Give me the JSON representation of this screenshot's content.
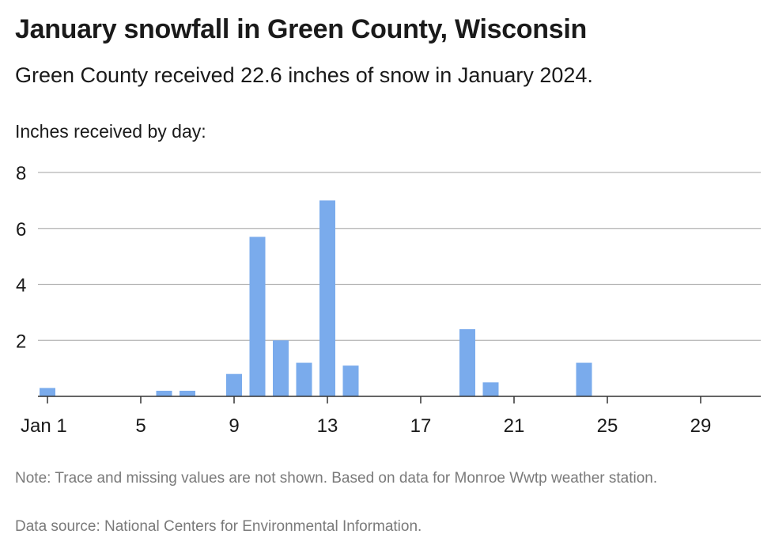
{
  "header": {
    "title": "January snowfall in Green County, Wisconsin",
    "subtitle": "Green County received 22.6 inches of snow in January 2024."
  },
  "footer": {
    "note": "Note: Trace and missing values are not shown. Based on data for Monroe Wwtp weather station.",
    "source": "Data source: National Centers for Environmental Information."
  },
  "colors": {
    "bar": "#7aabec",
    "grid": "#b3b3b3",
    "axis": "#333333",
    "text": "#1a1a1a",
    "muted": "#7a7a7a"
  },
  "chart_data": {
    "type": "bar",
    "ylabel": "Inches received by day:",
    "xlim": [
      1,
      31
    ],
    "ylim": [
      0,
      8
    ],
    "yticks": [
      2,
      4,
      6,
      8
    ],
    "xticks": [
      {
        "day": 1,
        "label": "Jan 1"
      },
      {
        "day": 5,
        "label": "5"
      },
      {
        "day": 9,
        "label": "9"
      },
      {
        "day": 13,
        "label": "13"
      },
      {
        "day": 17,
        "label": "17"
      },
      {
        "day": 21,
        "label": "21"
      },
      {
        "day": 25,
        "label": "25"
      },
      {
        "day": 29,
        "label": "29"
      }
    ],
    "grid": true,
    "x": [
      1,
      6,
      7,
      9,
      10,
      11,
      12,
      13,
      14,
      19,
      20,
      24
    ],
    "values": [
      0.3,
      0.2,
      0.2,
      0.8,
      5.7,
      2.0,
      1.2,
      7.0,
      1.1,
      2.4,
      0.5,
      1.2
    ]
  }
}
